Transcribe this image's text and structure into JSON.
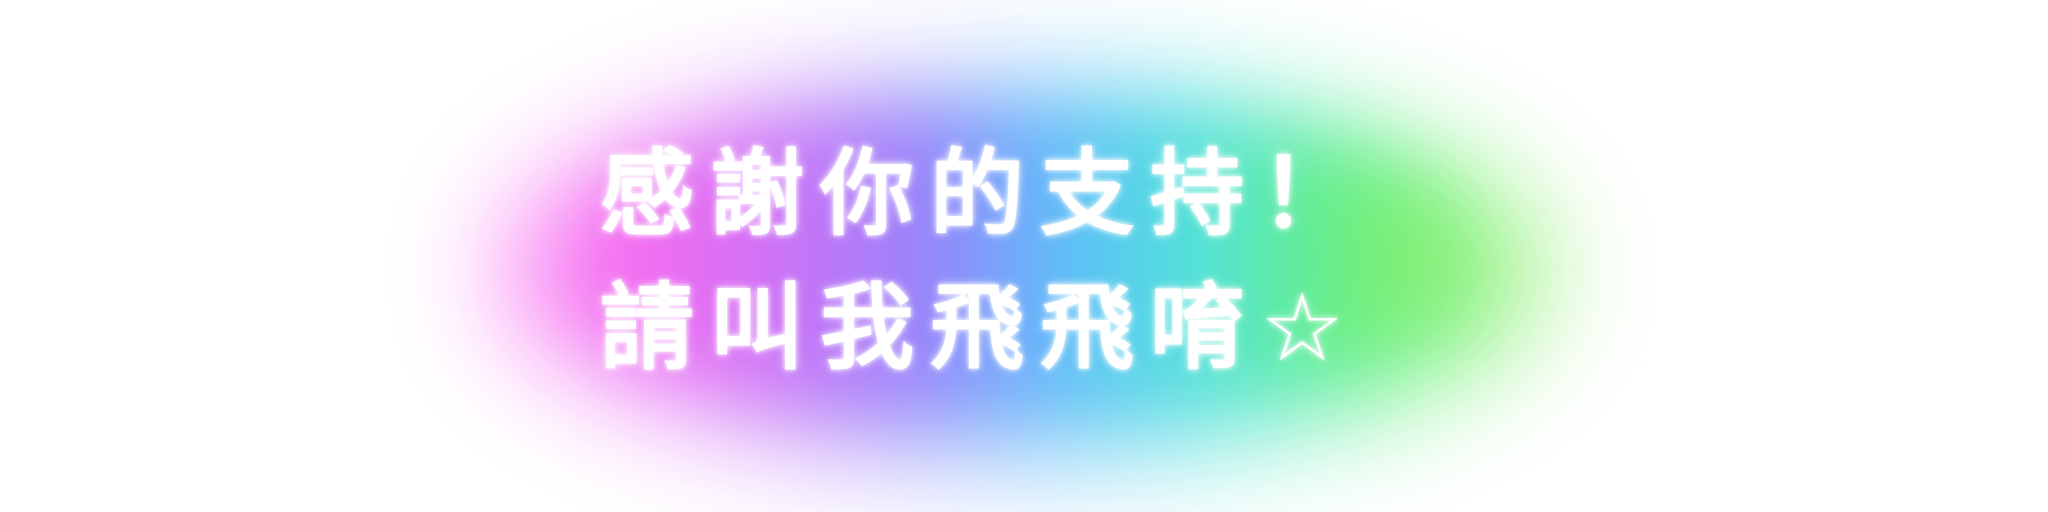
{
  "lines": [
    "感謝你的支持！",
    "請叫我飛飛唷☆"
  ],
  "colors": {
    "background": "#ffffff",
    "text": "#ffffff",
    "glow_gradient": [
      "#ff7af0",
      "#a88bf9",
      "#6fc4fb",
      "#62e8df",
      "#7cf58a"
    ]
  }
}
